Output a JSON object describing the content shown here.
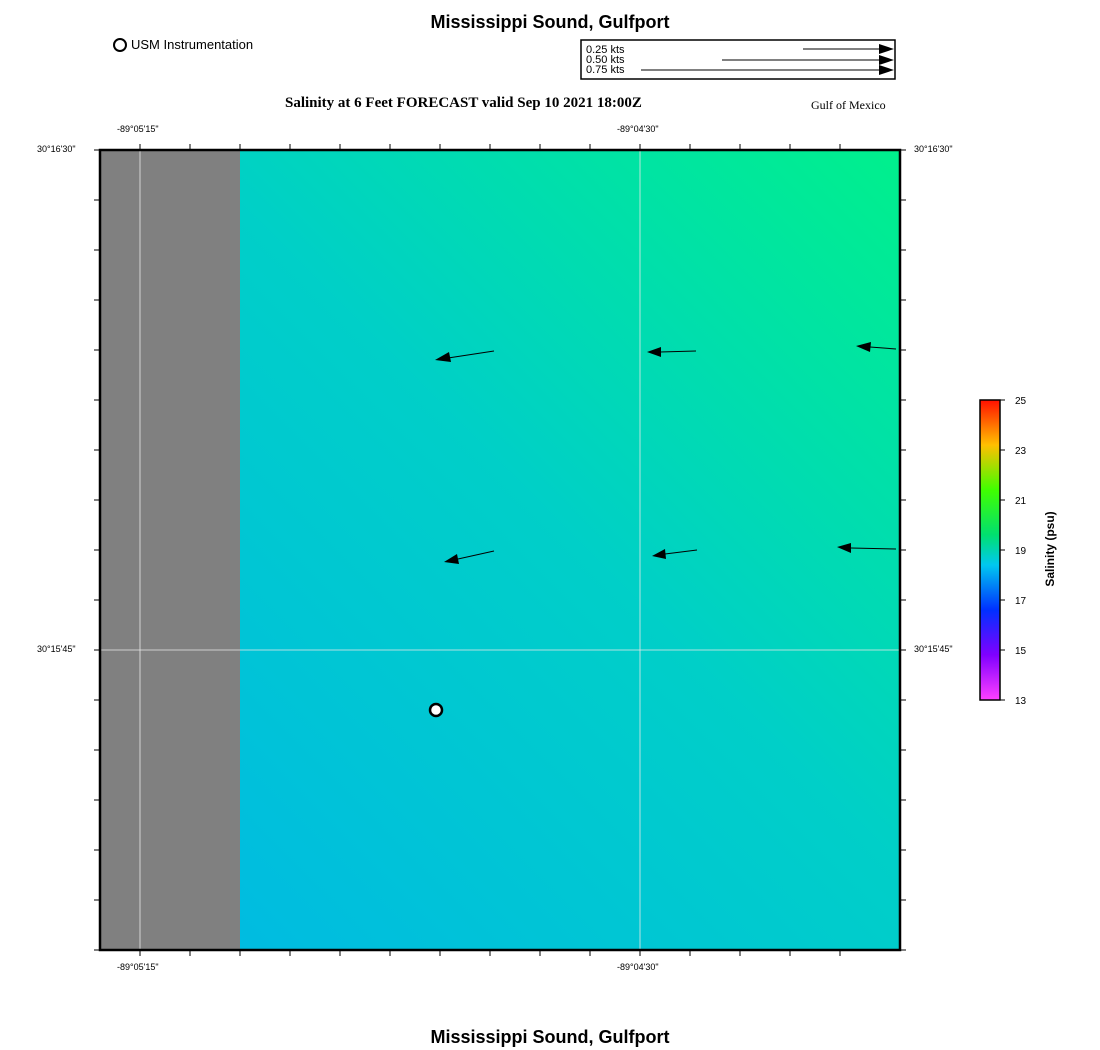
{
  "header": {
    "title_top": "Mississippi Sound, Gulfport",
    "title_bottom": "Mississippi Sound, Gulfport",
    "subtitle": "Salinity at 6 Feet FORECAST valid Sep 10 2021 18:00Z",
    "region_label": "Gulf of Mexico"
  },
  "legend": {
    "usm_label": "USM Instrumentation",
    "speed_scale": [
      {
        "label": "0.25 kts",
        "kts": 0.25
      },
      {
        "label": "0.50 kts",
        "kts": 0.5
      },
      {
        "label": "0.75 kts",
        "kts": 0.75
      }
    ]
  },
  "map": {
    "lon_ticks_top": [
      "-89°05'15\"",
      "-89°04'30\""
    ],
    "lon_ticks_bottom": [
      "-89°05'15\"",
      "-89°04'30\""
    ],
    "lat_ticks_left": [
      "30°16'30\"",
      "30°15'45\""
    ],
    "lat_ticks_right": [
      "30°16'30\"",
      "30°15'45\""
    ],
    "colors": {
      "land": "#808080",
      "water_low": "#00b8e6",
      "water_mid": "#00cfc8",
      "water_high": "#00f08c"
    }
  },
  "colorbar": {
    "title": "Salinity (psu)",
    "ticks": [
      "25",
      "23",
      "21",
      "19",
      "17",
      "15",
      "13"
    ]
  }
}
